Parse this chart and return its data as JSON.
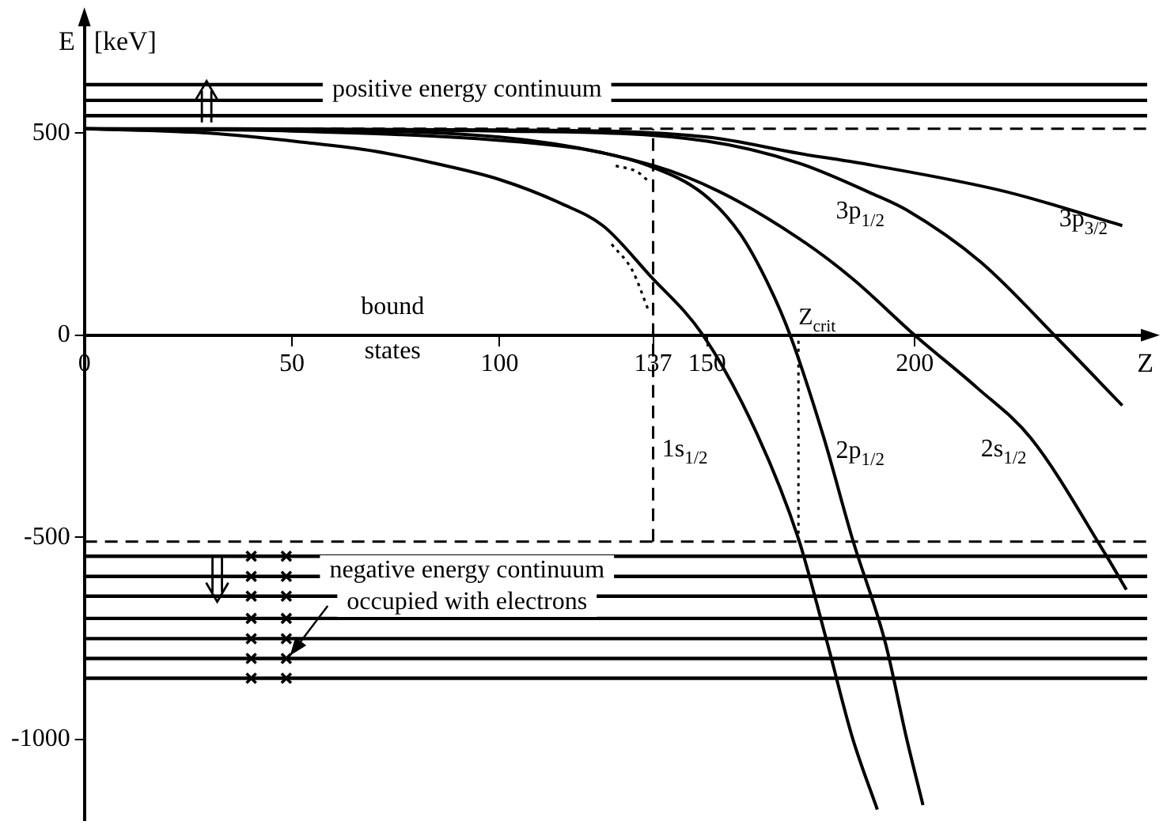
{
  "chart_data": {
    "type": "line",
    "xlabel": "Z",
    "ylabel": "E [keV]",
    "xlim": [
      0,
      256
    ],
    "ylim": [
      -1200,
      780
    ],
    "xticks": [
      0,
      50,
      100,
      137,
      150,
      200
    ],
    "yticks": [
      500,
      0,
      -500,
      -1000
    ],
    "grid": false,
    "legend": false,
    "marker": "none",
    "series": [
      {
        "name": "1s$_{1/2}$",
        "color": "#000000",
        "x": [
          0,
          30,
          53,
          70,
          84,
          100,
          115,
          125,
          136,
          149,
          162,
          172,
          179,
          185,
          191
        ],
        "values": [
          511,
          500,
          477,
          455,
          426,
          385,
          325,
          270,
          150,
          0,
          -244,
          -504,
          -764,
          -996,
          -1174
        ]
      },
      {
        "name": "2p$_{1/2}$",
        "color": "#000000",
        "x": [
          0,
          50,
          100,
          122,
          136,
          149,
          158,
          165,
          170,
          178,
          185,
          193,
          198,
          202
        ],
        "values": [
          511,
          505,
          482,
          457,
          419,
          350,
          250,
          120,
          0,
          -250,
          -504,
          -764,
          -996,
          -1163
        ]
      },
      {
        "name": "2s$_{1/2}$",
        "color": "#000000",
        "x": [
          0,
          50,
          100,
          137,
          153,
          172,
          185,
          200,
          215,
          228,
          246,
          251
        ],
        "values": [
          511,
          507,
          490,
          420,
          355,
          240,
          140,
          0,
          -130,
          -255,
          -543,
          -630
        ]
      },
      {
        "name": "3p$_{1/2}$",
        "color": "#000000",
        "x": [
          0,
          100,
          150,
          172,
          190,
          198,
          216,
          234,
          250
        ],
        "values": [
          511,
          505,
          480,
          426,
          349,
          310,
          180,
          -4,
          -174
        ]
      },
      {
        "name": "3p$_{3/2}$",
        "color": "#000000",
        "x": [
          0,
          100,
          150,
          172,
          190,
          222,
          250
        ],
        "values": [
          511,
          508,
          490,
          450,
          420,
          355,
          271
        ]
      },
      {
        "color": "#000000",
        "line_style": "dotted",
        "x": [
          127,
          132,
          136
        ],
        "values": [
          225,
          160,
          58
        ]
      },
      {
        "color": "#000000",
        "line_style": "dotted",
        "x": [
          128,
          133,
          136
        ],
        "values": [
          419,
          405,
          380
        ]
      }
    ],
    "ref_lines": [
      {
        "axis": "y",
        "value": 511,
        "line_style": "dashed"
      },
      {
        "axis": "y",
        "value": -511,
        "line_style": "dashed"
      },
      {
        "axis": "y",
        "value": 543
      },
      {
        "axis": "y",
        "value": 581
      },
      {
        "axis": "y",
        "value": 620
      },
      {
        "axis": "y",
        "value": -547
      },
      {
        "axis": "y",
        "value": -597
      },
      {
        "axis": "y",
        "value": -646
      },
      {
        "axis": "y",
        "value": -701
      },
      {
        "axis": "y",
        "value": -751
      },
      {
        "axis": "y",
        "value": -800
      },
      {
        "axis": "y",
        "value": -849
      },
      {
        "axis": "x",
        "value": 137,
        "line_style": "dashed"
      },
      {
        "axis": "x",
        "value": 172,
        "label": "Z$_{crit}$",
        "line_style": "dotted"
      }
    ],
    "annotations": [
      "bound states",
      "positive energy continuum",
      {
        "text": "negative energy continuum occupied with electrons",
        "x": 49,
        "y": -800
      }
    ]
  }
}
